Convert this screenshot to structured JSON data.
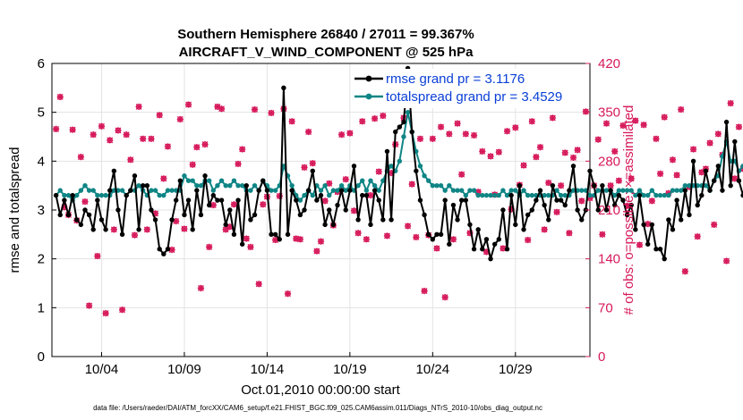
{
  "chart_data": {
    "type": "line",
    "title_line1": "Southern Hemisphere 26840 / 27011 = 99.367%",
    "title_line2": "AIRCRAFT_V_WIND_COMPONENT @ 525 hPa",
    "xlabel": "Oct.01,2010 00:00:00 start",
    "ylabel_left": "rmse and totalspread",
    "ylabel_right": "# of obs: o=possible; ×=assimilated",
    "xlim": [
      1,
      33.5
    ],
    "ylim_left": [
      0,
      6
    ],
    "ylim_right": [
      0,
      420
    ],
    "x_tick_values": [
      4,
      9,
      14,
      19,
      24,
      29
    ],
    "x_tick_labels": [
      "10/04",
      "10/09",
      "10/14",
      "10/19",
      "10/24",
      "10/29"
    ],
    "y_ticks_left": [
      "0",
      "1",
      "2",
      "3",
      "4",
      "5",
      "6"
    ],
    "y_ticks_right": [
      "0",
      "70",
      "140",
      "210",
      "280",
      "350",
      "420"
    ],
    "footer": "data file: /Users/raeder/DAI/ATM_forcXX/CAM6_setup/f.e21.FHIST_BGC.f09_025.CAM6assim.011/Diags_NTrS_2010-10/obs_diag_output.nc",
    "legend": [
      {
        "name": "rmse grand pr = 3.1176",
        "color": "#000000"
      },
      {
        "name": "totalspread grand pr = 3.4529",
        "color": "#0f8585"
      }
    ],
    "x_start": 1.25,
    "x_step": 0.25,
    "series": [
      {
        "name": "rmse",
        "color": "#000000",
        "values": [
          3.3,
          2.9,
          3.2,
          2.9,
          3.3,
          2.8,
          2.7,
          3.0,
          2.9,
          2.6,
          3.2,
          2.8,
          2.6,
          3.4,
          3.8,
          3.0,
          2.5,
          3.3,
          3.4,
          3.7,
          2.6,
          3.5,
          3.5,
          3.0,
          2.8,
          2.2,
          2.1,
          2.2,
          2.8,
          3.2,
          3.6,
          2.9,
          3.2,
          2.6,
          3.4,
          2.9,
          3.7,
          3.1,
          3.3,
          3.2,
          3.2,
          2.7,
          3.0,
          2.5,
          3.2,
          2.3,
          3.5,
          2.8,
          2.9,
          3.4,
          3.6,
          3.4,
          2.5,
          2.5,
          2.4,
          5.5,
          2.5,
          3.4,
          3.2,
          2.9,
          3.0,
          3.4,
          3.8,
          3.2,
          3.3,
          2.7,
          3.0,
          2.7,
          3.1,
          3.4,
          3.0,
          3.4,
          3.9,
          2.8,
          3.3,
          3.3,
          2.7,
          3.4,
          3.2,
          2.8,
          4.2,
          2.8,
          4.6,
          4.7,
          4.8,
          5.9,
          4.6,
          3.8,
          3.2,
          2.9,
          2.5,
          2.4,
          2.5,
          2.5,
          3.2,
          2.3,
          3.1,
          2.8,
          3.2,
          3.2,
          2.7,
          2.2,
          2.6,
          2.2,
          2.4,
          2.0,
          2.3,
          2.4,
          3.0,
          2.2,
          3.3,
          2.7,
          3.5,
          2.6,
          2.9,
          3.0,
          3.2,
          3.4,
          3.1,
          2.8,
          3.5,
          3.2,
          3.2,
          3.1,
          3.4,
          3.9,
          3.0,
          2.8,
          3.0,
          3.8,
          3.5,
          3.0,
          3.5,
          3.0,
          3.4,
          3.1,
          3.3,
          3.2,
          2.9,
          3.1,
          2.6,
          3.3,
          2.7,
          2.3,
          2.7,
          2.2,
          2.2,
          2.0,
          2.8,
          2.6,
          3.2,
          2.8,
          3.4,
          2.9,
          4.0,
          3.1,
          3.3,
          3.8,
          3.4,
          3.6,
          3.9,
          3.4,
          4.8,
          3.5,
          4.4,
          3.6,
          3.3,
          3.4,
          2.8
        ]
      },
      {
        "name": "totalspread",
        "color": "#0f8585",
        "values": [
          3.3,
          3.4,
          3.3,
          3.3,
          3.2,
          3.3,
          3.4,
          3.5,
          3.4,
          3.4,
          3.3,
          3.3,
          3.3,
          3.3,
          3.4,
          3.4,
          3.4,
          3.3,
          3.4,
          3.4,
          3.5,
          3.4,
          3.3,
          3.4,
          3.4,
          3.3,
          3.3,
          3.4,
          3.4,
          3.4,
          3.4,
          3.7,
          3.6,
          3.6,
          3.5,
          3.5,
          3.6,
          3.6,
          3.4,
          3.5,
          3.6,
          3.5,
          3.5,
          3.6,
          3.5,
          3.5,
          3.4,
          3.4,
          3.5,
          3.4,
          3.6,
          3.5,
          3.4,
          3.4,
          3.5,
          3.9,
          3.7,
          3.5,
          3.3,
          3.2,
          3.3,
          3.4,
          3.3,
          3.5,
          3.4,
          3.5,
          3.3,
          3.4,
          3.4,
          3.5,
          3.4,
          3.5,
          3.4,
          3.5,
          3.6,
          3.4,
          3.6,
          3.5,
          3.4,
          3.6,
          3.8,
          3.9,
          3.8,
          4.0,
          4.5,
          5.0,
          4.6,
          4.2,
          3.9,
          3.7,
          3.6,
          3.5,
          3.5,
          3.5,
          3.4,
          3.5,
          3.4,
          3.4,
          3.4,
          3.3,
          3.4,
          3.4,
          3.3,
          3.3,
          3.3,
          3.3,
          3.3,
          3.3,
          3.4,
          3.3,
          3.4,
          3.4,
          3.3,
          3.4,
          3.3,
          3.3,
          3.3,
          3.3,
          3.3,
          3.3,
          3.3,
          3.4,
          3.3,
          3.3,
          3.3,
          3.4,
          3.4,
          3.4,
          3.4,
          3.3,
          3.3,
          3.4,
          3.4,
          3.4,
          3.4,
          3.3,
          3.4,
          3.4,
          3.4,
          3.4,
          3.3,
          3.4,
          3.3,
          3.3,
          3.4,
          3.3,
          3.3,
          3.3,
          3.3,
          3.4,
          3.4,
          3.4,
          3.5,
          3.5,
          3.5,
          3.5,
          3.5,
          3.5,
          3.4,
          3.6,
          3.7,
          4.1,
          4.4,
          4.0,
          4.0,
          3.8,
          3.9
        ]
      }
    ],
    "obs_color": "#d6185a",
    "obs_counts": [
      326,
      372,
      214,
      203,
      325,
      195,
      286,
      222,
      73,
      318,
      144,
      330,
      62,
      310,
      182,
      324,
      67,
      318,
      282,
      174,
      358,
      312,
      182,
      312,
      205,
      346,
      255,
      301,
      153,
      194,
      340,
      183,
      361,
      275,
      300,
      98,
      304,
      157,
      217,
      358,
      355,
      182,
      186,
      218,
      276,
      297,
      169,
      157,
      354,
      104,
      218,
      229,
      349,
      167,
      230,
      355,
      90,
      337,
      169,
      168,
      271,
      322,
      277,
      151,
      165,
      223,
      248,
      188,
      236,
      318,
      254,
      320,
      209,
      177,
      337,
      168,
      231,
      341,
      265,
      345,
      173,
      263,
      304,
      376,
      342,
      187,
      247,
      171,
      312,
      94,
      174,
      312,
      155,
      329,
      85,
      319,
      168,
      334,
      261,
      319,
      177,
      317,
      236,
      294,
      150,
      287,
      232,
      293,
      155,
      323,
      211,
      328,
      246,
      274,
      167,
      337,
      286,
      300,
      182,
      249,
      342,
      207,
      245,
      292,
      177,
      285,
      296,
      223,
      351,
      227,
      245,
      311,
      175,
      334,
      245,
      294,
      252,
      331,
      216,
      255,
      338,
      160,
      332,
      190,
      223,
      312,
      262,
      343,
      234,
      282,
      260,
      354,
      122,
      243,
      297,
      172,
      264,
      269,
      306,
      189,
      319,
      289,
      137,
      363,
      255,
      329,
      269,
      158,
      127,
      152,
      0
    ]
  }
}
